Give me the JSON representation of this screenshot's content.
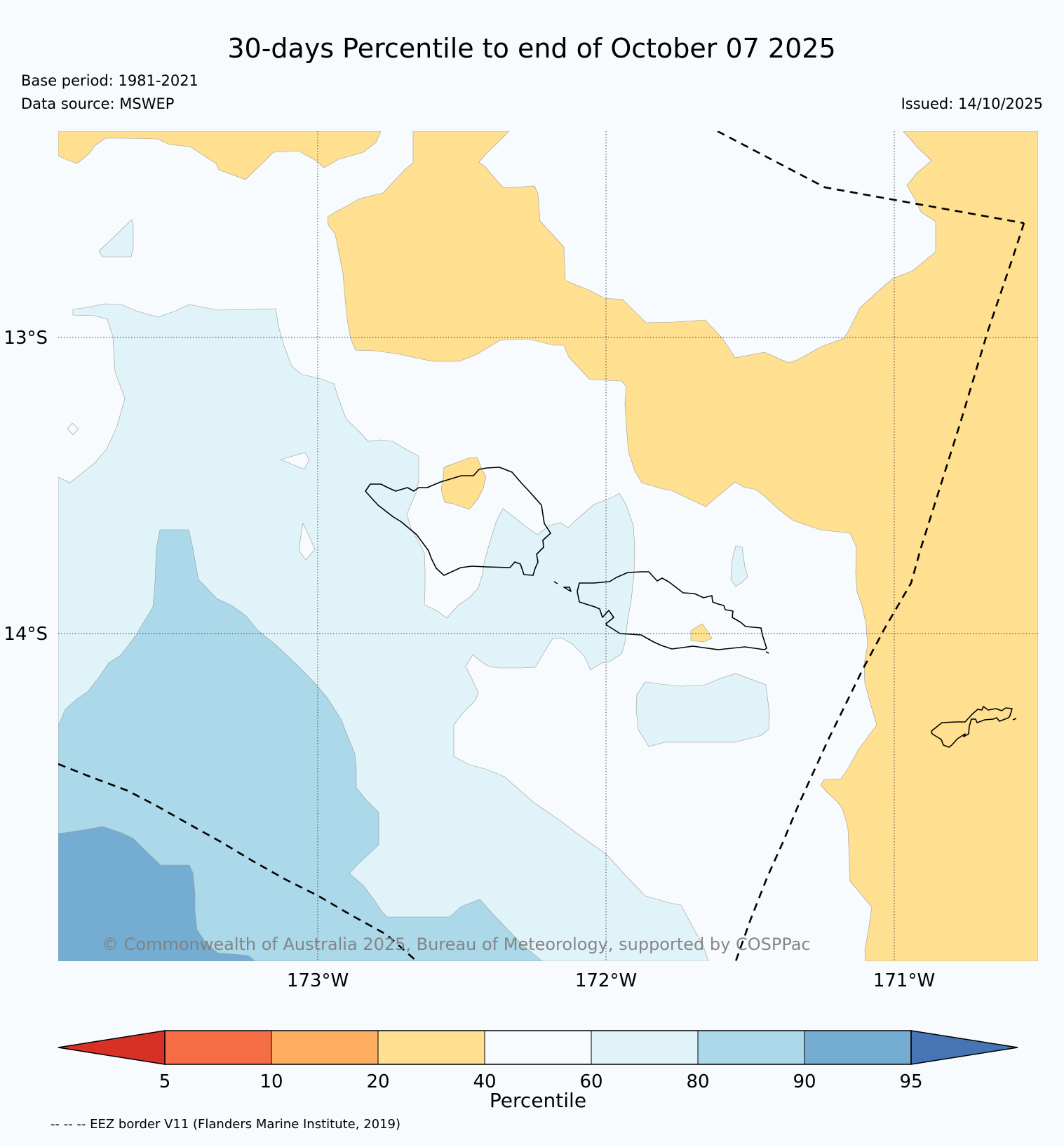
{
  "title": "30-days Percentile to end of October 07 2025",
  "meta": {
    "base_period": "Base period: 1981-2021",
    "data_source": "Data source: MSWEP",
    "issued": "Issued: 14/10/2025"
  },
  "map": {
    "lat_labels": [
      "13°S",
      "14°S"
    ],
    "lon_labels": [
      "173°W",
      "172°W",
      "171°W"
    ],
    "copyright": "© Commonwealth of Australia 2025, Bureau of Meteorology, supported by COSPPac"
  },
  "colorbar": {
    "label": "Percentile",
    "ticks": [
      "5",
      "10",
      "20",
      "40",
      "60",
      "80",
      "90",
      "95"
    ],
    "colors": {
      "below_5": "#d73027",
      "5_10": "#f46d43",
      "10_20": "#fdae61",
      "20_40": "#fee090",
      "40_60": "#f7fbfd",
      "60_80": "#e0f3f8",
      "80_90": "#abd9e9",
      "90_95": "#74add1",
      "above_95": "#4575b4"
    }
  },
  "footnote": "-- -- -- EEZ border V11 (Flanders Marine Institute, 2019)"
}
